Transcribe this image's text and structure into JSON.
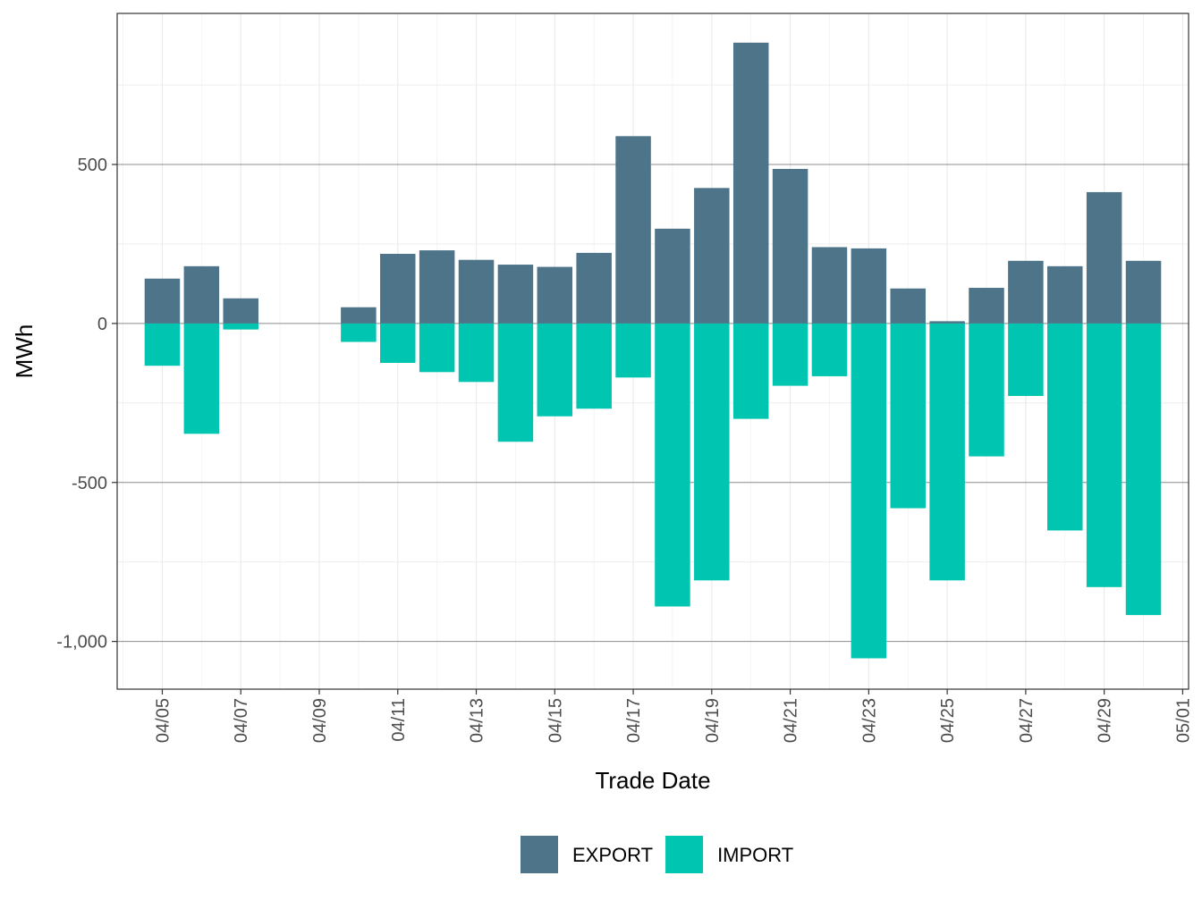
{
  "chart_data": {
    "type": "bar",
    "xlabel": "Trade Date",
    "ylabel": "MWh",
    "ylim": [
      -1150,
      975
    ],
    "yticks": [
      {
        "value": 500,
        "label": "500"
      },
      {
        "value": 0,
        "label": "0"
      },
      {
        "value": -500,
        "label": "-500"
      },
      {
        "value": -1000,
        "label": "-1,000"
      }
    ],
    "xlim": [
      "2024-04-04",
      "2024-05-01"
    ],
    "xticks": [
      {
        "date": "2024-04-05",
        "label": "04/05"
      },
      {
        "date": "2024-04-07",
        "label": "04/07"
      },
      {
        "date": "2024-04-09",
        "label": "04/09"
      },
      {
        "date": "2024-04-11",
        "label": "04/11"
      },
      {
        "date": "2024-04-13",
        "label": "04/13"
      },
      {
        "date": "2024-04-15",
        "label": "04/15"
      },
      {
        "date": "2024-04-17",
        "label": "04/17"
      },
      {
        "date": "2024-04-19",
        "label": "04/19"
      },
      {
        "date": "2024-04-21",
        "label": "04/21"
      },
      {
        "date": "2024-04-23",
        "label": "04/23"
      },
      {
        "date": "2024-04-25",
        "label": "04/25"
      },
      {
        "date": "2024-04-27",
        "label": "04/27"
      },
      {
        "date": "2024-04-29",
        "label": "04/29"
      },
      {
        "date": "2024-05-01",
        "label": "05/01"
      }
    ],
    "grid": true,
    "legend_position": "bottom",
    "dates": [
      "2024-04-05",
      "2024-04-06",
      "2024-04-07",
      "2024-04-10",
      "2024-04-11",
      "2024-04-12",
      "2024-04-13",
      "2024-04-14",
      "2024-04-15",
      "2024-04-16",
      "2024-04-17",
      "2024-04-18",
      "2024-04-19",
      "2024-04-20",
      "2024-04-21",
      "2024-04-22",
      "2024-04-23",
      "2024-04-24",
      "2024-04-25",
      "2024-04-26",
      "2024-04-27",
      "2024-04-28",
      "2024-04-29",
      "2024-04-30"
    ],
    "series": [
      {
        "name": "EXPORT",
        "color": "#4e7489",
        "values": [
          141,
          180,
          79,
          51,
          219,
          230,
          200,
          185,
          178,
          222,
          589,
          298,
          426,
          883,
          486,
          240,
          236,
          110,
          7,
          112,
          197,
          180,
          413,
          197
        ]
      },
      {
        "name": "IMPORT",
        "color": "#00c5b0",
        "values": [
          -133,
          -347,
          -19,
          -58,
          -124,
          -153,
          -184,
          -372,
          -292,
          -268,
          -170,
          -890,
          -808,
          -300,
          -196,
          -166,
          -1053,
          -581,
          -808,
          -418,
          -228,
          -651,
          -829,
          -917
        ]
      }
    ]
  }
}
